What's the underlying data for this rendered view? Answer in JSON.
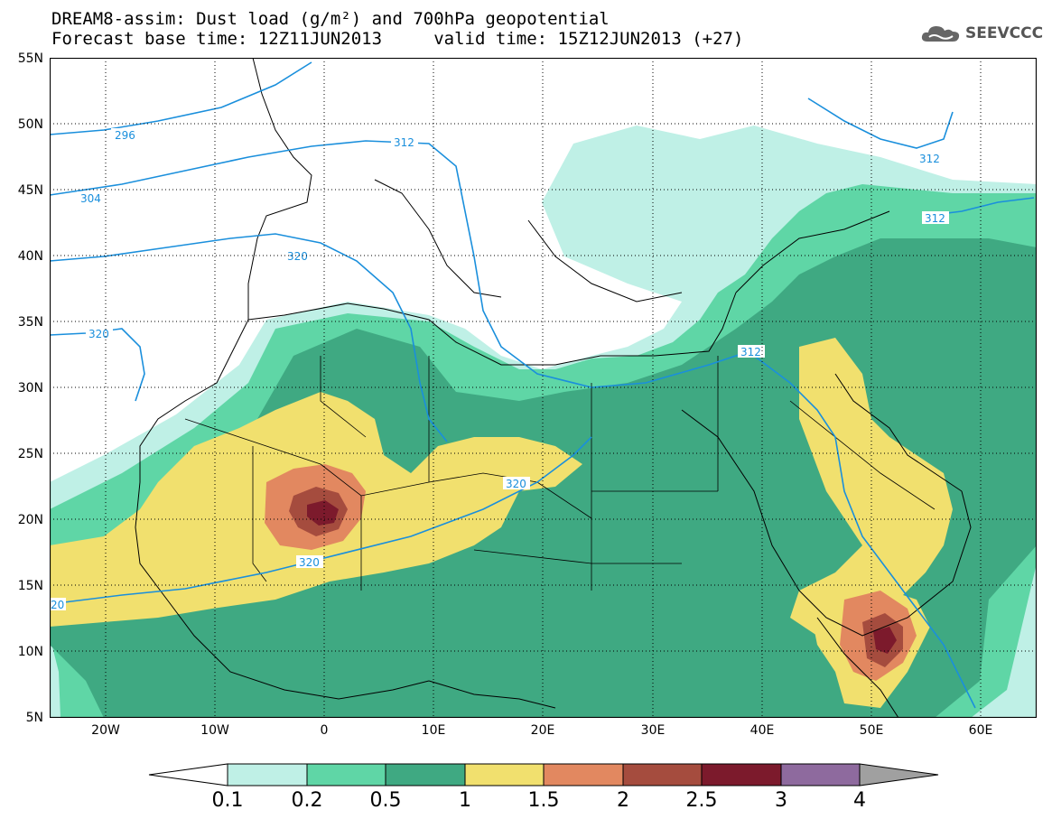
{
  "header": {
    "line1": "DREAM8-assim: Dust load (g/m²) and 700hPa geopotential",
    "line2": "Forecast base time: 12Z11JUN2013     valid time: 15Z12JUN2013 (+27)",
    "logo_text": "SEEVCCC",
    "logo_icon": "cloud-icon"
  },
  "map": {
    "region": "Saharan Africa, Mediterranean, Middle East",
    "lon_range": [
      -25,
      65
    ],
    "lat_range": [
      5,
      55
    ],
    "lat_ticks": [
      "55N",
      "50N",
      "45N",
      "40N",
      "35N",
      "30N",
      "25N",
      "20N",
      "15N",
      "10N",
      "5N"
    ],
    "lon_ticks": [
      "20W",
      "10W",
      "0",
      "10E",
      "20E",
      "30E",
      "40E",
      "50E",
      "60E"
    ],
    "contour_color": "#1a8fdc",
    "contour_labels": [
      "296",
      "304",
      "312",
      "312",
      "312",
      "312",
      "320",
      "320",
      "320",
      "320",
      "20"
    ]
  },
  "colorbar": {
    "labels": [
      "0.1",
      "0.2",
      "0.5",
      "1",
      "1.5",
      "2",
      "2.5",
      "3",
      "4"
    ],
    "colors": [
      "#bff0e6",
      "#5fd6a6",
      "#3fa982",
      "#f1e06e",
      "#e28860",
      "#a54c3e",
      "#7c1a2c",
      "#8e6a9e",
      "#a0a0a0"
    ]
  }
}
